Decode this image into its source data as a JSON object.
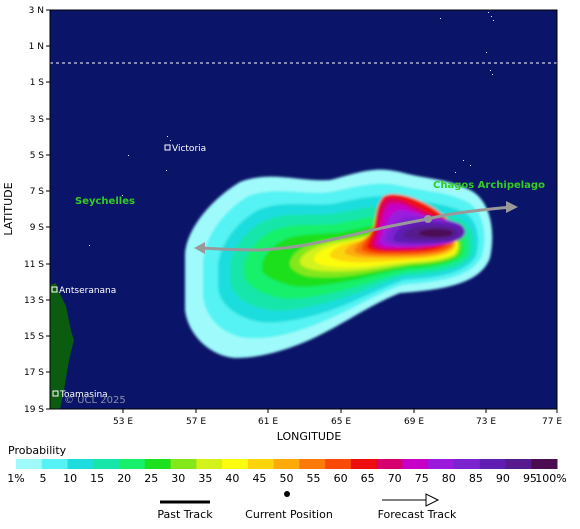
{
  "map": {
    "axis_y_label": "LATITUDE",
    "axis_x_label": "LONGITUDE",
    "lat_ticks": [
      "3 N",
      "1 N",
      "1 S",
      "3 S",
      "5 S",
      "7 S",
      "9 S",
      "11 S",
      "13 S",
      "15 S",
      "17 S",
      "19 S"
    ],
    "lon_ticks": [
      "53 E",
      "57 E",
      "61 E",
      "65 E",
      "69 E",
      "73 E",
      "77 E"
    ],
    "places": {
      "victoria": "Victoria",
      "seychelles": "Seychelles",
      "chagos": "Chagos Archipelago",
      "antseranana": "Antseranana",
      "toamasina": "Toamasina"
    },
    "copyright": "© UCL 2025",
    "colors": {
      "ocean": "#0a1468",
      "land": "#0b5b11",
      "label_green": "#33cc22",
      "track": "#999999"
    }
  },
  "legend": {
    "title": "Probability",
    "labels": [
      "1%",
      "5",
      "10",
      "15",
      "20",
      "25",
      "30",
      "35",
      "40",
      "45",
      "50",
      "55",
      "60",
      "65",
      "70",
      "75",
      "80",
      "85",
      "90",
      "95",
      "100%"
    ],
    "colors": [
      "#9ffbfb",
      "#55f3f3",
      "#1ddddd",
      "#17e6aa",
      "#18f06a",
      "#1fe01f",
      "#82e81a",
      "#d4f21a",
      "#fcfc10",
      "#fcd40c",
      "#fcaa0a",
      "#fc7a0a",
      "#f84a06",
      "#ee0e0e",
      "#d8006e",
      "#c600c6",
      "#9a1bdc",
      "#7a23cf",
      "#5e1fb0",
      "#561a8e",
      "#4c0c52"
    ],
    "past_track": "Past Track",
    "current_position": "Current Position",
    "forecast_track": "Forecast Track"
  }
}
